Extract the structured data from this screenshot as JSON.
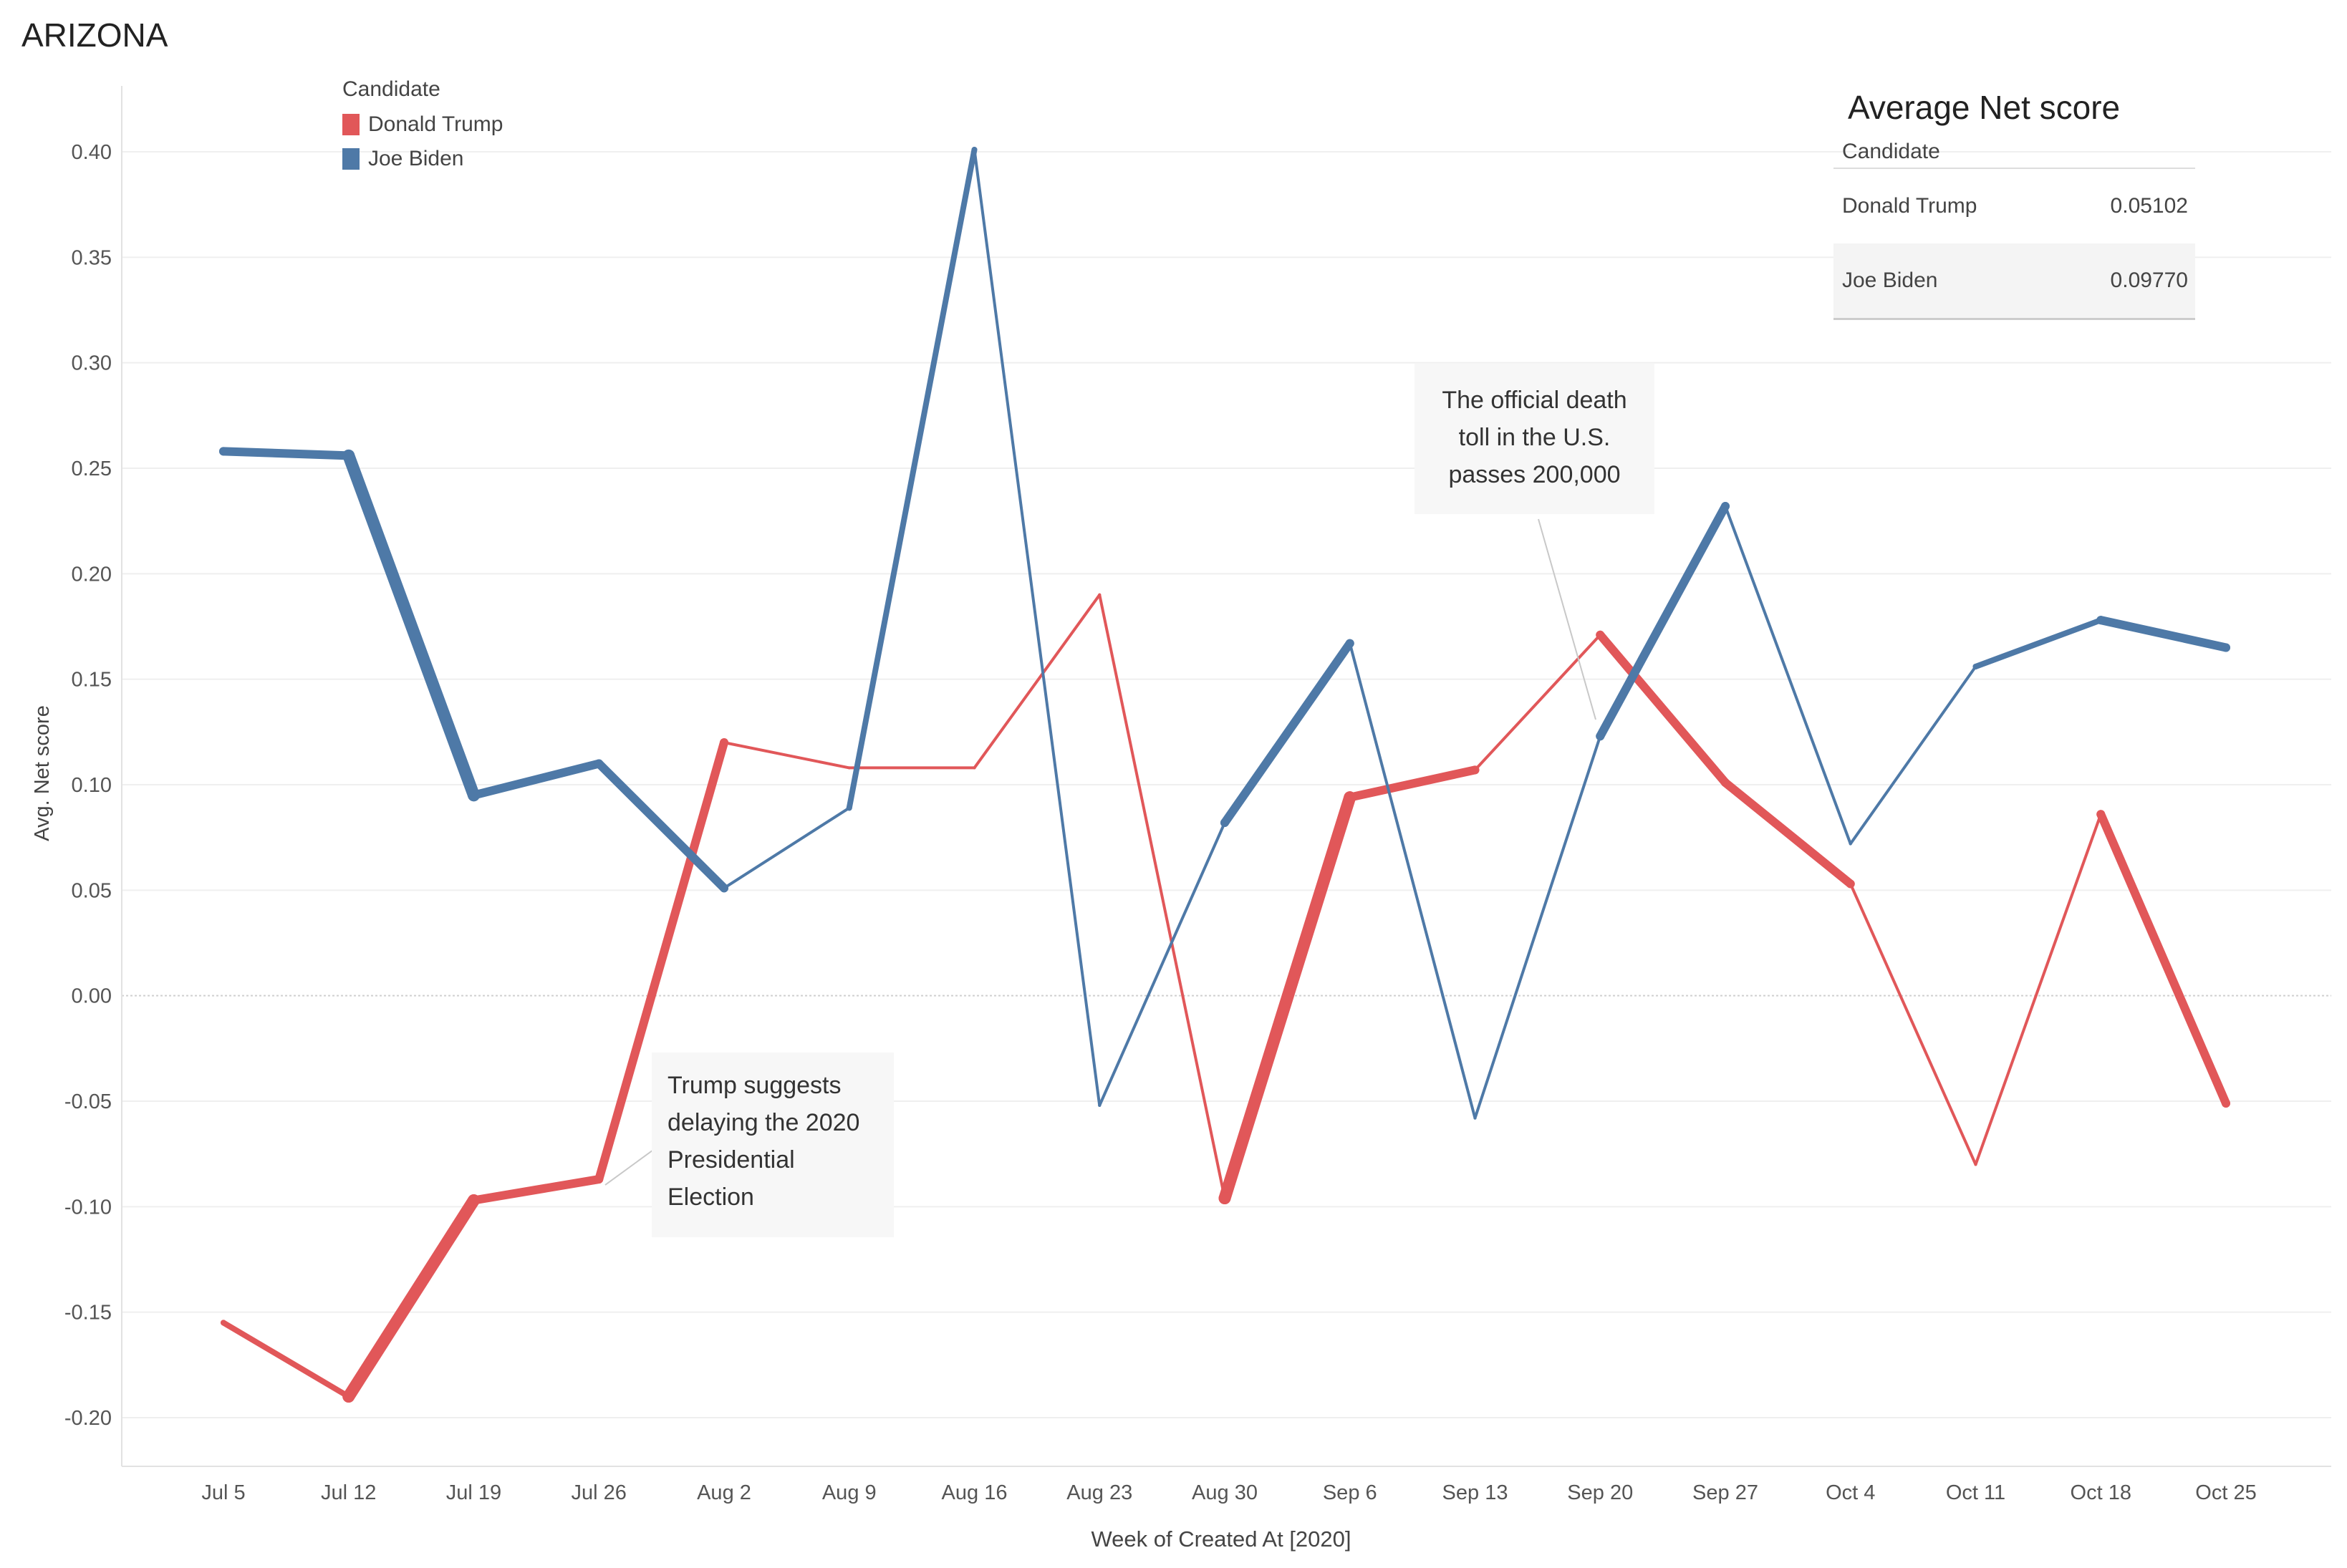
{
  "page_title": "ARIZONA",
  "legend": {
    "title": "Candidate",
    "items": [
      {
        "name": "Donald Trump",
        "color": "#e15759"
      },
      {
        "name": "Joe Biden",
        "color": "#4e79a7"
      }
    ]
  },
  "summary": {
    "title": "Average Net score",
    "header": "Candidate",
    "rows": [
      {
        "name": "Donald Trump",
        "value": "0.05102"
      },
      {
        "name": "Joe Biden",
        "value": "0.09770"
      }
    ]
  },
  "annotations": {
    "covid": [
      "The official death",
      "toll in the U.S.",
      "passes 200,000"
    ],
    "trump": [
      "Trump suggests",
      "delaying the 2020",
      "Presidential",
      "Election"
    ]
  },
  "chart_data": {
    "type": "line",
    "title": "ARIZONA",
    "xlabel": "Week of Created At [2020]",
    "ylabel": "Avg. Net score",
    "categories": [
      "Jul 5",
      "Jul 12",
      "Jul 19",
      "Jul 26",
      "Aug 2",
      "Aug 9",
      "Aug 16",
      "Aug 23",
      "Aug 30",
      "Sep 6",
      "Sep 13",
      "Sep 20",
      "Sep 27",
      "Oct 4",
      "Oct 11",
      "Oct 18",
      "Oct 25"
    ],
    "ylim": [
      -0.22,
      0.42
    ],
    "yticks": [
      0.4,
      0.35,
      0.3,
      0.25,
      0.2,
      0.15,
      0.1,
      0.05,
      0.0,
      -0.05,
      -0.1,
      -0.15,
      -0.2
    ],
    "ytick_labels": [
      "0.40",
      "0.35",
      "0.30",
      "0.25",
      "0.20",
      "0.15",
      "0.10",
      "0.05",
      "0.00",
      "-0.05",
      "-0.10",
      "-0.15",
      "-0.20"
    ],
    "grid": true,
    "series": [
      {
        "name": "Donald Trump",
        "color": "#e15759",
        "values": [
          -0.155,
          -0.19,
          -0.097,
          -0.087,
          0.12,
          0.108,
          0.108,
          0.19,
          -0.096,
          0.094,
          0.107,
          0.171,
          0.101,
          0.053,
          -0.08,
          0.086,
          -0.051
        ],
        "line_weight": [
          2,
          4,
          3,
          3,
          1,
          1,
          1,
          1,
          4,
          3,
          1,
          3,
          3,
          1,
          1,
          3,
          3
        ]
      },
      {
        "name": "Joe Biden",
        "color": "#4e79a7",
        "values": [
          0.258,
          0.256,
          0.095,
          0.11,
          0.051,
          0.089,
          0.401,
          -0.052,
          0.082,
          0.167,
          -0.058,
          0.123,
          0.232,
          0.072,
          0.156,
          0.178,
          0.165
        ],
        "line_weight": [
          3,
          4,
          3,
          3,
          1,
          2,
          1,
          1,
          3,
          1,
          1,
          3,
          1,
          1,
          2,
          3,
          2
        ]
      }
    ]
  }
}
